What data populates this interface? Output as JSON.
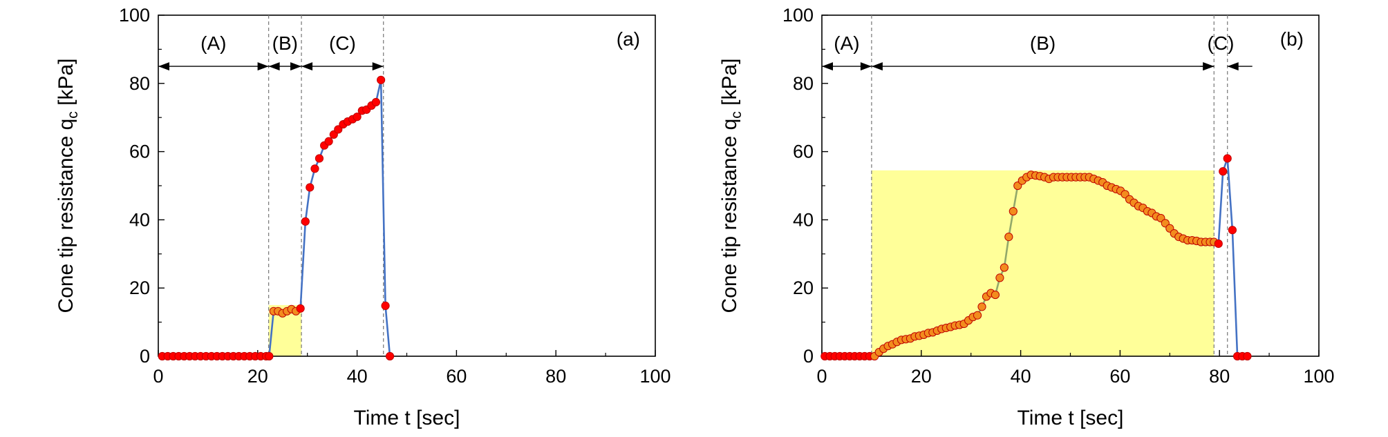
{
  "chart_data": [
    {
      "type": "line",
      "panel_label": "(a)",
      "xlabel": "Time t [sec]",
      "ylabel": {
        "main": "Cone tip resistance q",
        "sub": "c",
        "unit": " [kPa]"
      },
      "xlim": [
        0,
        100
      ],
      "ylim": [
        0,
        100
      ],
      "xticks": [
        0,
        20,
        40,
        60,
        80,
        100
      ],
      "yticks": [
        0,
        20,
        40,
        60,
        80,
        100
      ],
      "line_color": "#4472C4",
      "shaded_region": {
        "x": [
          22.2,
          28.8
        ],
        "y": [
          0,
          15
        ],
        "color": "#FFFF99"
      },
      "boundaries": [
        22.2,
        28.8,
        45.3
      ],
      "phases": [
        {
          "label": "(A)",
          "from": 0,
          "to": 22.2,
          "arrows": "both"
        },
        {
          "label": "(B)",
          "from": 22.2,
          "to": 28.8,
          "arrows": "both"
        },
        {
          "label": "(C)",
          "from": 28.8,
          "to": 45.3,
          "arrows": "both"
        }
      ],
      "phase_arrow_y": 85,
      "series": [
        {
          "x": [
            0.8,
            1.9,
            3.0,
            4.1,
            5.2,
            6.3,
            7.4,
            8.5,
            9.6,
            10.7,
            11.8,
            12.9,
            14.0,
            15.1,
            16.2,
            17.3,
            18.4,
            19.5,
            20.6,
            21.7,
            22.3,
            23.2,
            24.1,
            25.0,
            25.9,
            26.8,
            27.7,
            28.6,
            29.6,
            30.5,
            31.5,
            32.4,
            33.4,
            34.3,
            35.3,
            36.2,
            37.2,
            38.1,
            39.1,
            40.0,
            41.0,
            41.9,
            42.9,
            43.8,
            44.8,
            45.7,
            46.6
          ],
          "y": [
            0,
            0,
            0,
            0,
            0,
            0,
            0,
            0,
            0,
            0,
            0,
            0,
            0,
            0,
            0,
            0,
            0,
            0,
            0,
            0,
            0,
            13.2,
            13.2,
            12.6,
            13.2,
            13.8,
            13.2,
            14.0,
            39.5,
            49.5,
            55.0,
            58.0,
            61.8,
            63.0,
            65.0,
            66.5,
            68.0,
            68.8,
            69.5,
            70.2,
            72.0,
            72.3,
            73.5,
            74.5,
            81.0,
            14.8,
            0
          ],
          "marker_colors": [
            "r",
            "r",
            "r",
            "r",
            "r",
            "r",
            "r",
            "r",
            "r",
            "r",
            "r",
            "r",
            "r",
            "r",
            "r",
            "r",
            "r",
            "r",
            "r",
            "r",
            "r",
            "o",
            "o",
            "o",
            "o",
            "o",
            "o",
            "r",
            "r",
            "r",
            "r",
            "r",
            "r",
            "r",
            "r",
            "r",
            "r",
            "r",
            "r",
            "r",
            "r",
            "r",
            "r",
            "r",
            "r",
            "r",
            "r"
          ]
        }
      ]
    },
    {
      "type": "line",
      "panel_label": "(b)",
      "xlabel": "Time t [sec]",
      "ylabel": {
        "main": "Cone tip resistance q",
        "sub": "c",
        "unit": " [kPa]"
      },
      "xlim": [
        0,
        100
      ],
      "ylim": [
        0,
        100
      ],
      "xticks": [
        0,
        20,
        40,
        60,
        80,
        100
      ],
      "yticks": [
        0,
        20,
        40,
        60,
        80,
        100
      ],
      "line_color": "#4472C4",
      "shaded_region": {
        "x": [
          10,
          78.9
        ],
        "y": [
          0,
          54.5
        ],
        "color": "#FFFF99"
      },
      "boundaries": [
        10,
        78.9,
        81.6
      ],
      "phases": [
        {
          "label": "(A)",
          "from": 0,
          "to": 10,
          "arrows": "both"
        },
        {
          "label": "(B)",
          "from": 10,
          "to": 78.9,
          "arrows": "both"
        },
        {
          "label": "(C)",
          "from": 78.9,
          "to": 81.6,
          "arrows": "inward"
        }
      ],
      "phase_arrow_y": 85,
      "series": [
        {
          "x": [
            0.6,
            1.6,
            2.6,
            3.6,
            4.6,
            5.6,
            6.6,
            7.6,
            8.6,
            9.6,
            10.6,
            11.5,
            12.4,
            13.3,
            14.2,
            15.1,
            16.0,
            16.9,
            17.8,
            18.7,
            19.6,
            20.5,
            21.4,
            22.3,
            23.2,
            24.1,
            25.0,
            25.9,
            26.8,
            27.7,
            28.6,
            29.5,
            30.4,
            31.3,
            32.2,
            33.1,
            34.0,
            34.9,
            35.8,
            36.7,
            37.6,
            38.5,
            39.4,
            40.3,
            41.2,
            42.1,
            43.0,
            43.9,
            44.8,
            45.7,
            46.6,
            47.5,
            48.4,
            49.3,
            50.2,
            51.1,
            52.0,
            52.9,
            53.8,
            54.7,
            55.6,
            56.5,
            57.4,
            58.3,
            59.2,
            60.1,
            61.0,
            61.9,
            62.8,
            63.7,
            64.6,
            65.5,
            66.4,
            67.3,
            68.2,
            69.1,
            70.0,
            70.9,
            71.8,
            72.7,
            73.6,
            74.5,
            75.4,
            76.3,
            77.2,
            78.1,
            78.9,
            79.8,
            80.7,
            81.6,
            82.6,
            83.6,
            84.6,
            85.6
          ],
          "y": [
            0,
            0,
            0,
            0,
            0,
            0,
            0,
            0,
            0,
            0,
            0,
            1.2,
            2.2,
            3.0,
            3.5,
            4.2,
            4.8,
            5.0,
            5.2,
            5.8,
            6.0,
            6.3,
            6.8,
            7.0,
            7.5,
            8.0,
            8.3,
            8.6,
            9.0,
            9.2,
            9.5,
            10.5,
            11.5,
            12.0,
            14.5,
            17.5,
            18.5,
            18.0,
            23.0,
            26.0,
            35.0,
            42.5,
            50.0,
            51.5,
            52.5,
            53.2,
            53.0,
            52.8,
            52.5,
            52.0,
            52.5,
            52.5,
            52.5,
            52.5,
            52.5,
            52.5,
            52.5,
            52.5,
            52.5,
            52.0,
            51.5,
            51.0,
            50.0,
            49.5,
            49.0,
            48.5,
            47.5,
            46.0,
            45.0,
            44.0,
            43.5,
            42.5,
            42.0,
            41.0,
            40.5,
            39.0,
            37.5,
            36.0,
            35.0,
            34.5,
            34.0,
            34.0,
            33.8,
            33.5,
            33.5,
            33.5,
            33.5,
            33.0,
            54.2,
            58.0,
            37.0,
            0,
            0,
            0
          ],
          "marker_colors": [
            "r",
            "r",
            "r",
            "r",
            "r",
            "r",
            "r",
            "r",
            "r",
            "r",
            "o",
            "o",
            "o",
            "o",
            "o",
            "o",
            "o",
            "o",
            "o",
            "o",
            "o",
            "o",
            "o",
            "o",
            "o",
            "o",
            "o",
            "o",
            "o",
            "o",
            "o",
            "o",
            "o",
            "o",
            "o",
            "o",
            "o",
            "o",
            "o",
            "o",
            "o",
            "o",
            "o",
            "o",
            "o",
            "o",
            "o",
            "o",
            "o",
            "o",
            "o",
            "o",
            "o",
            "o",
            "o",
            "o",
            "o",
            "o",
            "o",
            "o",
            "o",
            "o",
            "o",
            "o",
            "o",
            "o",
            "o",
            "o",
            "o",
            "o",
            "o",
            "o",
            "o",
            "o",
            "o",
            "o",
            "o",
            "o",
            "o",
            "o",
            "o",
            "o",
            "o",
            "o",
            "o",
            "o",
            "o",
            "r",
            "r",
            "r",
            "r",
            "r",
            "r",
            "r"
          ]
        }
      ]
    }
  ],
  "colors": {
    "marker_red": "#FF0000",
    "marker_orange": "#F28C1E",
    "marker_edge": "#C00000",
    "segment_inside": "#92A86A"
  }
}
